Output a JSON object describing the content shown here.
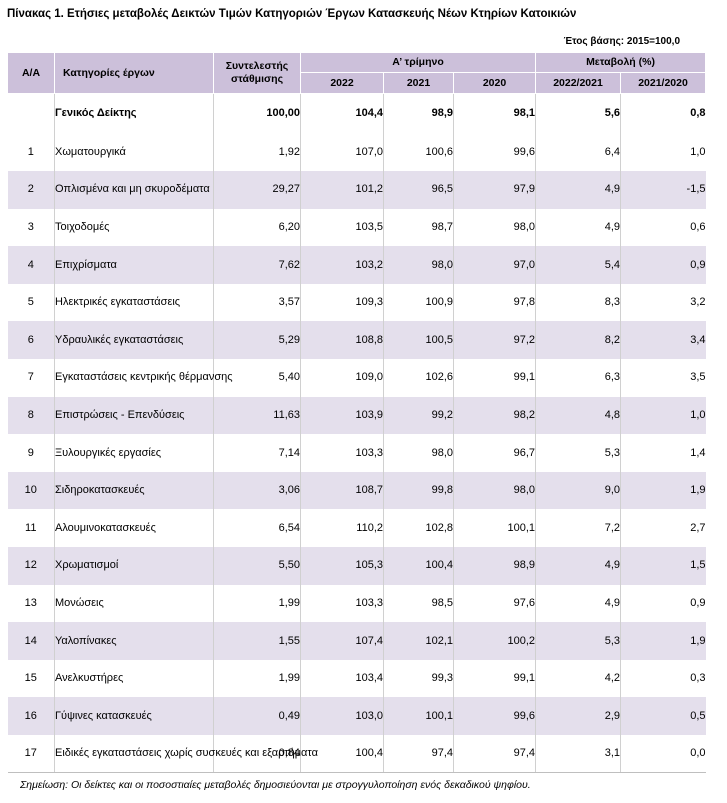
{
  "title": "Πίνακας 1. Ετήσιες μεταβολές Δεικτών Τιμών Κατηγοριών Έργων Κατασκευής Νέων Κτηρίων Κατοικιών",
  "base_note": "Έτος βάσης: 2015=100,0",
  "colors": {
    "header_bg": "#ccc0da",
    "band_bg": "#e4dfec",
    "grid": "#d0d0d0"
  },
  "table": {
    "headers": {
      "aa": "Α/Α",
      "category": "Κατηγορίες έργων",
      "weight": "Συντελεστής\nστάθμισης",
      "quarter_group": "Α’ τρίμηνο",
      "change_group": "Μεταβολή (%)",
      "years": [
        "2022",
        "2021",
        "2020"
      ],
      "changes": [
        "2022/2021",
        "2021/2020"
      ]
    },
    "general": {
      "category": "Γενικός Δείκτης",
      "weight": "100,00",
      "values": [
        "104,4",
        "98,9",
        "98,1"
      ],
      "changes": [
        "5,6",
        "0,8"
      ]
    },
    "rows": [
      {
        "aa": "1",
        "category": "Χωματουργικά",
        "weight": "1,92",
        "values": [
          "107,0",
          "100,6",
          "99,6"
        ],
        "changes": [
          "6,4",
          "1,0"
        ]
      },
      {
        "aa": "2",
        "category": "Οπλισμένα και μη\nσκυροδέματα",
        "weight": "29,27",
        "values": [
          "101,2",
          "96,5",
          "97,9"
        ],
        "changes": [
          "4,9",
          "-1,5"
        ]
      },
      {
        "aa": "3",
        "category": "Τοιχοδομές",
        "weight": "6,20",
        "values": [
          "103,5",
          "98,7",
          "98,0"
        ],
        "changes": [
          "4,9",
          "0,6"
        ]
      },
      {
        "aa": "4",
        "category": "Επιχρίσματα",
        "weight": "7,62",
        "values": [
          "103,2",
          "98,0",
          "97,0"
        ],
        "changes": [
          "5,4",
          "0,9"
        ]
      },
      {
        "aa": "5",
        "category": "Ηλεκτρικές εγκαταστάσεις",
        "weight": "3,57",
        "values": [
          "109,3",
          "100,9",
          "97,8"
        ],
        "changes": [
          "8,3",
          "3,2"
        ]
      },
      {
        "aa": "6",
        "category": "Υδραυλικές εγκαταστάσεις",
        "weight": "5,29",
        "values": [
          "108,8",
          "100,5",
          "97,2"
        ],
        "changes": [
          "8,2",
          "3,4"
        ]
      },
      {
        "aa": "7",
        "category": "Εγκαταστάσεις κεντρικής\nθέρμανσης",
        "weight": "5,40",
        "values": [
          "109,0",
          "102,6",
          "99,1"
        ],
        "changes": [
          "6,3",
          "3,5"
        ]
      },
      {
        "aa": "8",
        "category": "Επιστρώσεις - Επενδύσεις",
        "weight": "11,63",
        "values": [
          "103,9",
          "99,2",
          "98,2"
        ],
        "changes": [
          "4,8",
          "1,0"
        ]
      },
      {
        "aa": "9",
        "category": "Ξυλουργικές εργασίες",
        "weight": "7,14",
        "values": [
          "103,3",
          "98,0",
          "96,7"
        ],
        "changes": [
          "5,3",
          "1,4"
        ]
      },
      {
        "aa": "10",
        "category": "Σιδηροκατασκευές",
        "weight": "3,06",
        "values": [
          "108,7",
          "99,8",
          "98,0"
        ],
        "changes": [
          "9,0",
          "1,9"
        ]
      },
      {
        "aa": "11",
        "category": "Αλουμινοκατασκευές",
        "weight": "6,54",
        "values": [
          "110,2",
          "102,8",
          "100,1"
        ],
        "changes": [
          "7,2",
          "2,7"
        ]
      },
      {
        "aa": "12",
        "category": "Χρωματισμοί",
        "weight": "5,50",
        "values": [
          "105,3",
          "100,4",
          "98,9"
        ],
        "changes": [
          "4,9",
          "1,5"
        ]
      },
      {
        "aa": "13",
        "category": "Μονώσεις",
        "weight": "1,99",
        "values": [
          "103,3",
          "98,5",
          "97,6"
        ],
        "changes": [
          "4,9",
          "0,9"
        ]
      },
      {
        "aa": "14",
        "category": "Υαλοπίνακες",
        "weight": "1,55",
        "values": [
          "107,4",
          "102,1",
          "100,2"
        ],
        "changes": [
          "5,3",
          "1,9"
        ]
      },
      {
        "aa": "15",
        "category": "Ανελκυστήρες",
        "weight": "1,99",
        "values": [
          "103,4",
          "99,3",
          "99,1"
        ],
        "changes": [
          "4,2",
          "0,3"
        ]
      },
      {
        "aa": "16",
        "category": "Γύψινες κατασκευές",
        "weight": "0,49",
        "values": [
          "103,0",
          "100,1",
          "99,6"
        ],
        "changes": [
          "2,9",
          "0,5"
        ]
      },
      {
        "aa": "17",
        "category": "Ειδικές εγκαταστάσεις χωρίς\nσυσκευές και εξαρτήματα",
        "weight": "0,84",
        "values": [
          "100,4",
          "97,4",
          "97,4"
        ],
        "changes": [
          "3,1",
          "0,0"
        ]
      }
    ]
  },
  "note": "Σημείωση: Οι δείκτες και οι ποσοστιαίες μεταβολές δημοσιεύονται με στρογγυλοποίηση ενός δεκαδικού ψηφίου."
}
